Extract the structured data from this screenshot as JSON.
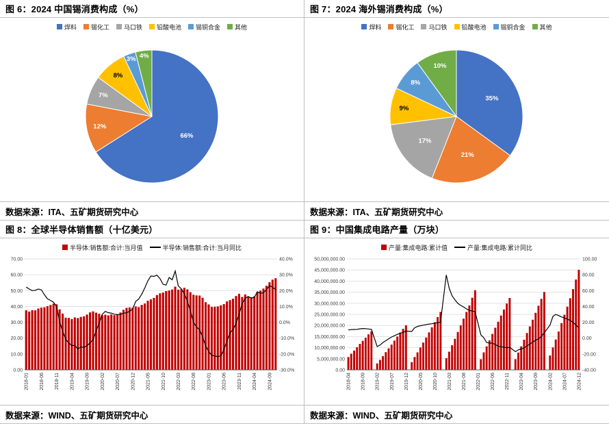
{
  "colors": {
    "grid": "#D9D9D9",
    "divider": "#BFBFBF",
    "bar_red": "#C00000",
    "line_black": "#000000"
  },
  "sources": [
    "数据来源：ITA、五矿期货研究中心",
    "数据来源：ITA、五矿期货研究中心",
    "数据来源：WIND、五矿期货研究中心",
    "数据来源：WIND、五矿期货研究中心"
  ],
  "chart_data": [
    {
      "type": "pie",
      "title": "图 6：2024 中国锡消费构成（%）",
      "legend_position": "top",
      "categories": [
        "焊料",
        "锡化工",
        "马口铁",
        "铅酸电池",
        "锡铜合金",
        "其他"
      ],
      "values": [
        66,
        12,
        7,
        8,
        3,
        4
      ],
      "labels": [
        "66%",
        "12%",
        "7%",
        "8%",
        "3%",
        "4%"
      ],
      "colors": [
        "#4472C4",
        "#ED7D31",
        "#A5A5A5",
        "#FFC000",
        "#5B9BD5",
        "#70AD47"
      ],
      "label_colors": [
        "#FFFFFF",
        "#FFFFFF",
        "#FFFFFF",
        "#000000",
        "#FFFFFF",
        "#FFFFFF"
      ]
    },
    {
      "type": "pie",
      "title": "图 7：2024 海外锡消费构成（%）",
      "legend_position": "top",
      "categories": [
        "焊料",
        "锡化工",
        "马口铁",
        "铅酸电池",
        "锡铜合金",
        "其他"
      ],
      "values": [
        35,
        21,
        17,
        9,
        8,
        10
      ],
      "labels": [
        "35%",
        "21%",
        "17%",
        "9%",
        "8%",
        "10%"
      ],
      "colors": [
        "#4472C4",
        "#ED7D31",
        "#A5A5A5",
        "#FFC000",
        "#5B9BD5",
        "#70AD47"
      ],
      "label_colors": [
        "#FFFFFF",
        "#FFFFFF",
        "#FFFFFF",
        "#000000",
        "#FFFFFF",
        "#FFFFFF"
      ]
    },
    {
      "type": "bar+line",
      "title": "图 8：全球半导体销售额（十亿美元）",
      "legend_position": "top",
      "x_tick_every": 5,
      "y_left": {
        "min": 0,
        "max": 70,
        "step": 10,
        "format": "fixed2"
      },
      "y_right": {
        "min": -30,
        "max": 40,
        "step": 10,
        "format": "pct1"
      },
      "grid": true,
      "x": [
        "2018-01",
        "2018-02",
        "2018-03",
        "2018-04",
        "2018-05",
        "2018-06",
        "2018-07",
        "2018-08",
        "2018-09",
        "2018-10",
        "2018-11",
        "2018-12",
        "2019-01",
        "2019-02",
        "2019-03",
        "2019-04",
        "2019-05",
        "2019-06",
        "2019-07",
        "2019-08",
        "2019-09",
        "2019-10",
        "2019-11",
        "2019-12",
        "2020-01",
        "2020-02",
        "2020-03",
        "2020-04",
        "2020-05",
        "2020-06",
        "2020-07",
        "2020-08",
        "2020-09",
        "2020-10",
        "2020-11",
        "2020-12",
        "2021-01",
        "2021-02",
        "2021-03",
        "2021-04",
        "2021-05",
        "2021-06",
        "2021-07",
        "2021-08",
        "2021-09",
        "2021-10",
        "2021-11",
        "2021-12",
        "2022-01",
        "2022-02",
        "2022-03",
        "2022-04",
        "2022-05",
        "2022-06",
        "2022-07",
        "2022-08",
        "2022-09",
        "2022-10",
        "2022-11",
        "2022-12",
        "2023-01",
        "2023-02",
        "2023-03",
        "2023-04",
        "2023-05",
        "2023-06",
        "2023-07",
        "2023-08",
        "2023-09",
        "2023-10",
        "2023-11",
        "2023-12",
        "2024-01",
        "2024-02",
        "2024-03",
        "2024-04",
        "2024-05",
        "2024-06",
        "2024-07",
        "2024-08",
        "2024-09",
        "2024-10",
        "2024-11"
      ],
      "series": [
        {
          "name": "半导体:销售额:合计:当月值",
          "type": "bar",
          "axis": "left",
          "color": "#C00000",
          "values": [
            37.6,
            36.8,
            37.7,
            37.6,
            38.7,
            39.3,
            39.5,
            40.2,
            40.9,
            41.8,
            41.4,
            38.2,
            35.5,
            32.9,
            32.8,
            32.1,
            33.1,
            32.7,
            33.4,
            33.8,
            34.9,
            36.3,
            36.9,
            36.1,
            35.4,
            34.5,
            34.8,
            34.4,
            35.0,
            34.5,
            35.2,
            36.2,
            37.9,
            39.1,
            39.4,
            39.2,
            40.0,
            39.6,
            41.0,
            41.9,
            43.6,
            44.5,
            45.4,
            47.2,
            48.3,
            48.8,
            49.7,
            50.1,
            50.7,
            52.5,
            50.6,
            50.9,
            51.8,
            50.8,
            49.0,
            47.4,
            47.0,
            46.9,
            45.5,
            42.7,
            41.3,
            39.7,
            39.8,
            40.0,
            40.7,
            41.5,
            43.2,
            44.0,
            44.9,
            46.6,
            48.0,
            46.0,
            47.6,
            46.2,
            45.9,
            46.4,
            49.1,
            50.0,
            51.3,
            53.1,
            55.3,
            56.9,
            57.8
          ]
        },
        {
          "name": "半导体:销售额:合计:当月同比",
          "type": "line",
          "axis": "right",
          "color": "#000000",
          "values": [
            22.3,
            21.0,
            20.0,
            20.2,
            21.0,
            20.5,
            17.4,
            14.9,
            13.8,
            12.7,
            9.8,
            0.6,
            -5.7,
            -10.6,
            -13.0,
            -14.6,
            -14.6,
            -16.8,
            -15.5,
            -15.9,
            -14.6,
            -13.1,
            -10.8,
            -5.5,
            -0.3,
            5.0,
            6.9,
            6.1,
            5.8,
            5.1,
            4.9,
            4.9,
            5.8,
            6.0,
            7.0,
            8.3,
            13.2,
            14.7,
            17.8,
            21.7,
            26.2,
            29.2,
            29.0,
            29.7,
            27.6,
            24.0,
            23.5,
            28.3,
            26.8,
            32.4,
            23.0,
            21.1,
            18.0,
            13.3,
            7.3,
            0.1,
            -3.0,
            -4.6,
            -9.2,
            -14.7,
            -18.5,
            -20.7,
            -21.3,
            -21.6,
            -21.1,
            -17.3,
            -11.8,
            -6.8,
            -4.5,
            -0.7,
            5.3,
            11.6,
            15.2,
            16.3,
            15.2,
            15.8,
            19.3,
            18.3,
            18.7,
            20.6,
            23.2,
            22.1,
            20.7
          ]
        }
      ]
    },
    {
      "type": "bar+line",
      "title": "图 9：中国集成电路产量（万块）",
      "legend_position": "top",
      "x_tick_every": 5,
      "y_left": {
        "min": 0,
        "max": 50000000,
        "step": 5000000,
        "format": "thousands2"
      },
      "y_right": {
        "min": -40,
        "max": 100,
        "step": 20,
        "format": "fixed2"
      },
      "grid": true,
      "x": [
        "2018-04",
        "2018-05",
        "2018-06",
        "2018-07",
        "2018-08",
        "2018-09",
        "2018-10",
        "2018-11",
        "2018-12",
        "2019-01",
        "2019-02",
        "2019-03",
        "2019-04",
        "2019-05",
        "2019-06",
        "2019-07",
        "2019-08",
        "2019-09",
        "2019-10",
        "2019-11",
        "2019-12",
        "2020-01",
        "2020-02",
        "2020-03",
        "2020-04",
        "2020-05",
        "2020-06",
        "2020-07",
        "2020-08",
        "2020-09",
        "2020-10",
        "2020-11",
        "2020-12",
        "2021-01",
        "2021-02",
        "2021-03",
        "2021-04",
        "2021-05",
        "2021-06",
        "2021-07",
        "2021-08",
        "2021-09",
        "2021-10",
        "2021-11",
        "2021-12",
        "2022-01",
        "2022-02",
        "2022-03",
        "2022-04",
        "2022-05",
        "2022-06",
        "2022-07",
        "2022-08",
        "2022-09",
        "2022-10",
        "2022-11",
        "2022-12",
        "2023-01",
        "2023-02",
        "2023-03",
        "2023-04",
        "2023-05",
        "2023-06",
        "2023-07",
        "2023-08",
        "2023-09",
        "2023-10",
        "2023-11",
        "2023-12",
        "2024-01",
        "2024-02",
        "2024-03",
        "2024-04",
        "2024-05",
        "2024-06",
        "2024-07",
        "2024-08",
        "2024-09",
        "2024-10",
        "2024-11",
        "2024-12"
      ],
      "series": [
        {
          "name": "产量:集成电路:累计值",
          "type": "bar",
          "axis": "left",
          "color": "#C00000",
          "values": [
            5800000,
            7300000,
            8700000,
            10200000,
            11700000,
            13100000,
            14500000,
            16000000,
            17400000,
            null,
            2900000,
            4500000,
            6200000,
            8000000,
            9700000,
            11400000,
            13200000,
            15000000,
            16800000,
            18500000,
            20100000,
            null,
            3500000,
            5800000,
            7900000,
            10100000,
            12300000,
            14600000,
            16900000,
            19200000,
            21500000,
            23800000,
            26100000,
            null,
            5300000,
            8200000,
            11100000,
            14000000,
            17100000,
            20100000,
            23100000,
            26100000,
            29000000,
            32500000,
            35900000,
            null,
            4800000,
            7900000,
            10600000,
            13300000,
            16200000,
            19000000,
            21700000,
            24500000,
            27200000,
            29900000,
            32400000,
            null,
            4800000,
            7800000,
            10600000,
            13600000,
            16600000,
            19600000,
            22600000,
            25700000,
            28900000,
            32000000,
            35100000,
            null,
            6500000,
            10100000,
            13700000,
            17300000,
            21100000,
            24800000,
            28500000,
            32300000,
            36400000,
            40700000,
            45100000
          ]
        },
        {
          "name": "产量:集成电路:累计同比",
          "type": "line",
          "axis": "right",
          "color": "#000000",
          "values": [
            10.5,
            10.8,
            11.0,
            11.2,
            11.8,
            12.2,
            12.0,
            11.6,
            11.2,
            null,
            -10.5,
            -8.7,
            -5.4,
            -3.2,
            -0.8,
            1.5,
            3.1,
            4.8,
            6.2,
            7.4,
            8.9,
            null,
            8.5,
            13.1,
            14.8,
            15.7,
            16.4,
            17.2,
            17.8,
            18.2,
            18.9,
            19.5,
            20.3,
            null,
            79.8,
            62.9,
            53.4,
            48.3,
            43.9,
            41.3,
            39.4,
            36.9,
            34.9,
            34.4,
            33.3,
            null,
            4.2,
            0.5,
            -5.4,
            -6.2,
            -6.3,
            -8.0,
            -10.0,
            -10.8,
            -11.3,
            -12.0,
            -11.6,
            null,
            -17.0,
            -14.8,
            -13.6,
            -12.3,
            -9.8,
            -7.3,
            -5.0,
            -2.5,
            -0.9,
            2.3,
            6.9,
            null,
            16.5,
            27.5,
            30.0,
            28.5,
            26.8,
            25.4,
            24.0,
            22.5,
            20.0,
            16.5,
            13.0
          ]
        }
      ]
    }
  ]
}
